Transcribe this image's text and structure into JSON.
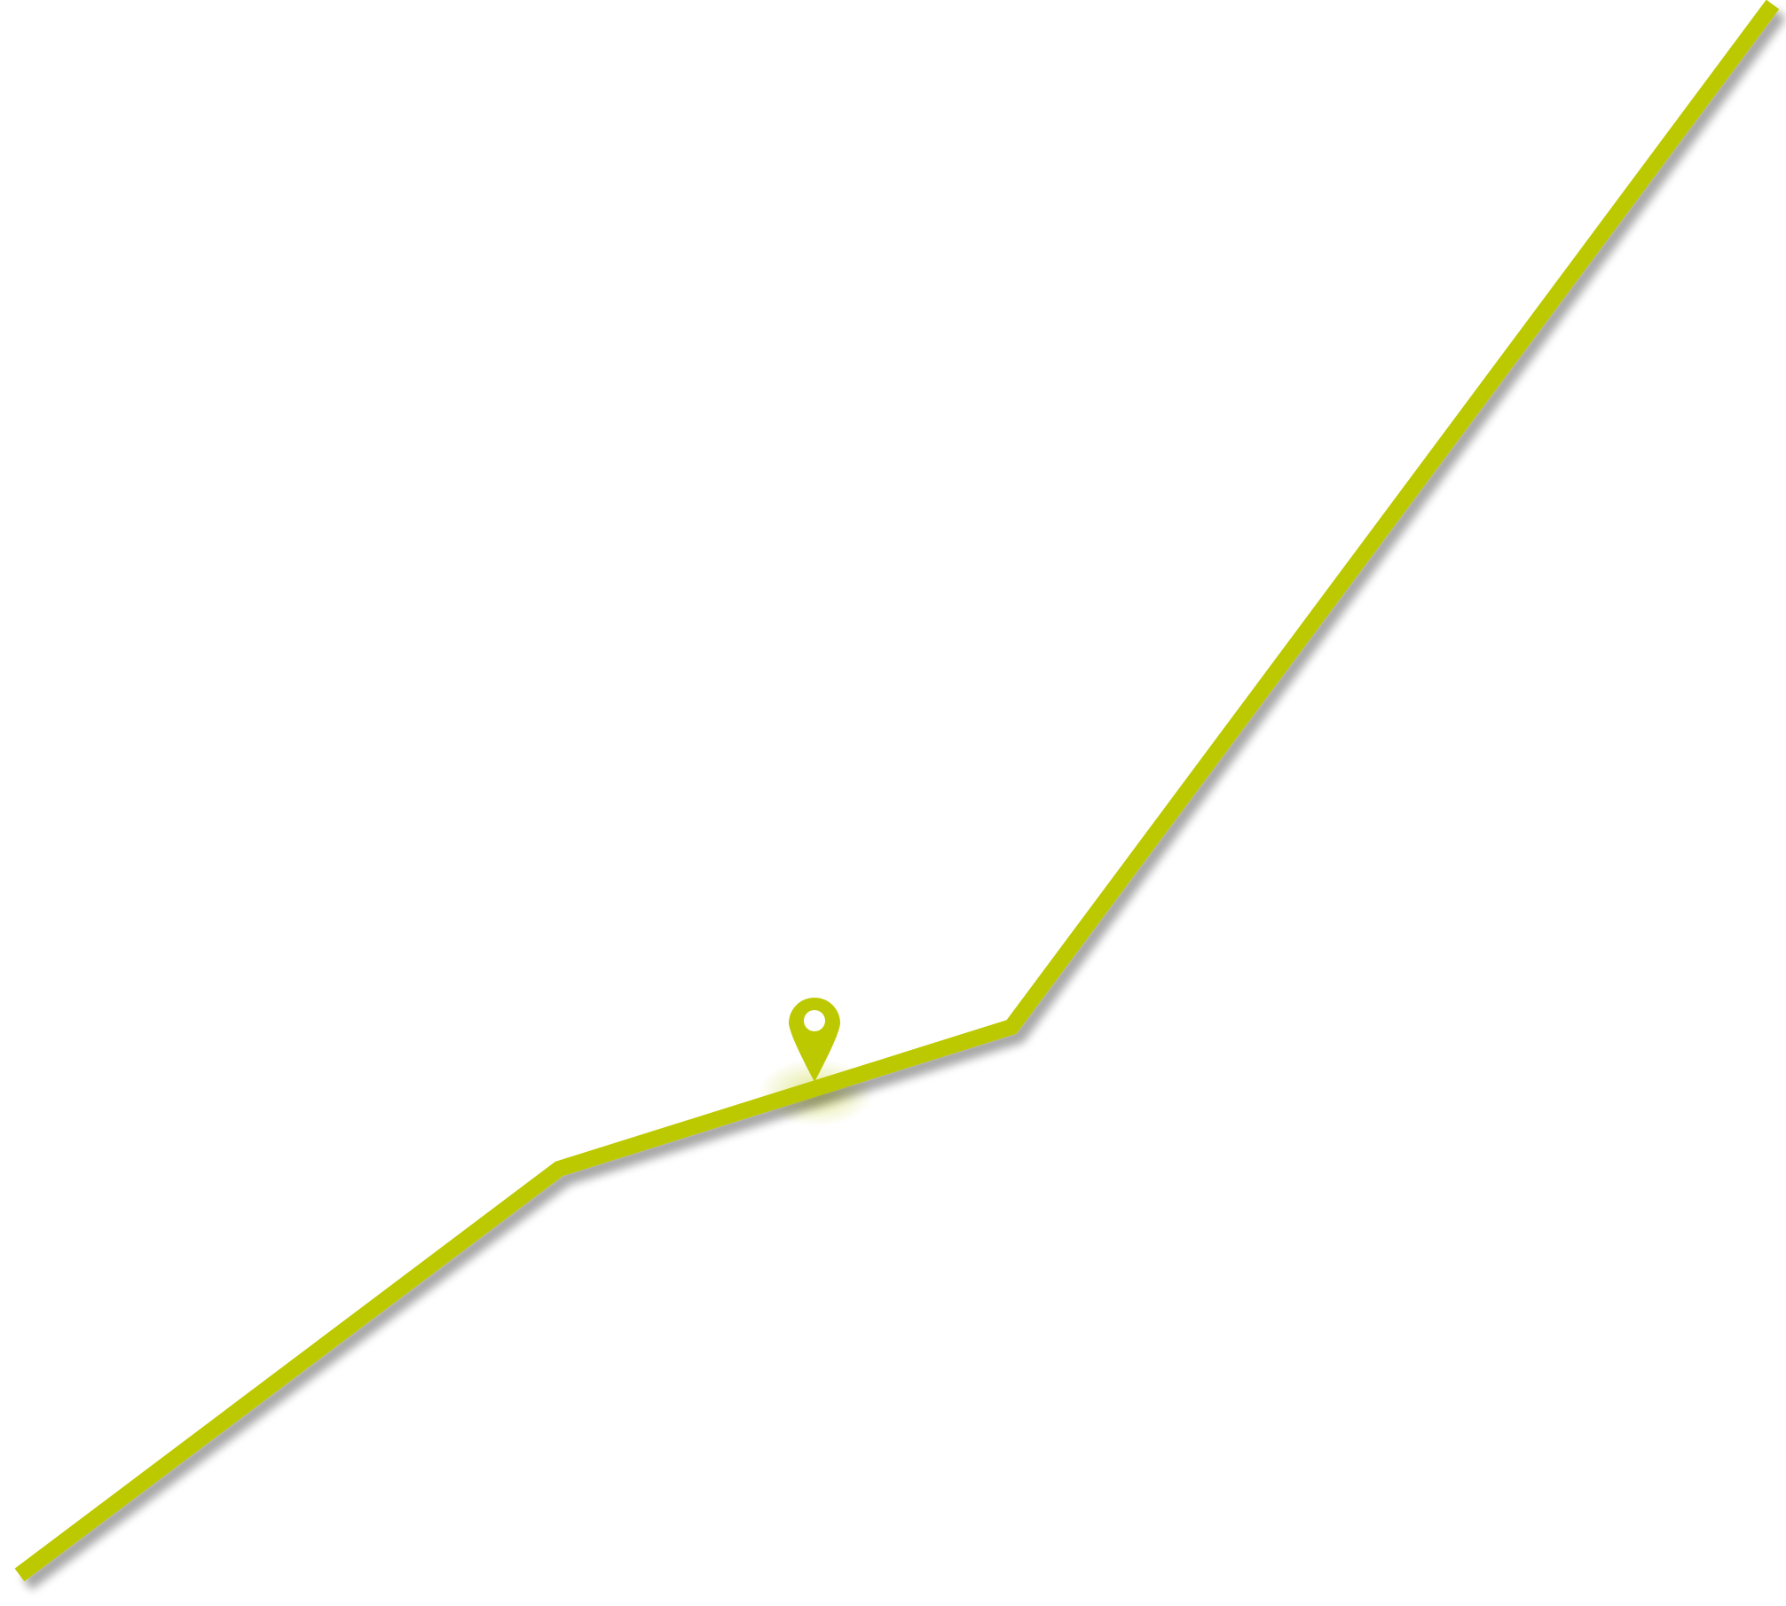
{
  "graphic": {
    "accent_color": "#bcc900",
    "background_color": "#ffffff",
    "line": {
      "icon": "polyline-path"
    },
    "marker": {
      "icon": "map-pin-icon"
    }
  }
}
